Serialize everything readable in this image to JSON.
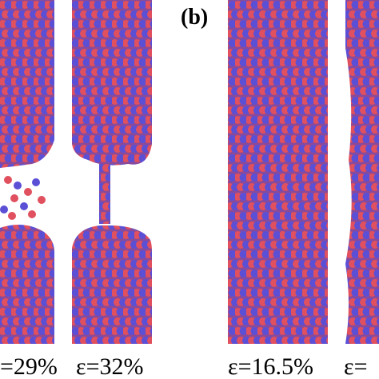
{
  "panel_label": "(b)",
  "strain_labels": [
    "=29%",
    "ε=32%",
    "ε=16.5%",
    "ε="
  ]
}
